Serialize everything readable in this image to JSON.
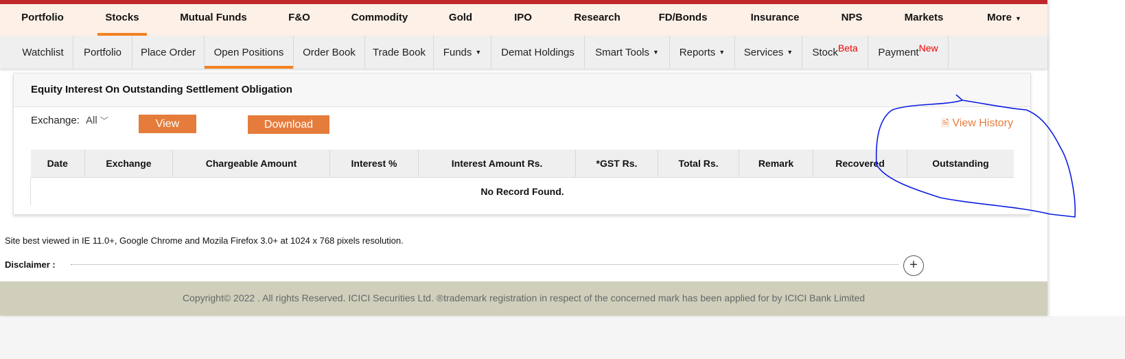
{
  "top_nav": {
    "items": [
      "Portfolio",
      "Stocks",
      "Mutual Funds",
      "F&O",
      "Commodity",
      "Gold",
      "IPO",
      "Research",
      "FD/Bonds",
      "Insurance",
      "NPS",
      "Markets",
      "More"
    ],
    "active": "Stocks"
  },
  "sub_nav": {
    "items": [
      {
        "label": "Watchlist"
      },
      {
        "label": "Portfolio"
      },
      {
        "label": "Place Order"
      },
      {
        "label": "Open Positions"
      },
      {
        "label": "Order Book"
      },
      {
        "label": "Trade Book"
      },
      {
        "label": "Funds"
      },
      {
        "label": "Demat Holdings"
      },
      {
        "label": "Smart Tools"
      },
      {
        "label": "Reports"
      },
      {
        "label": "Services"
      },
      {
        "label": "Stock",
        "badge": "Beta"
      },
      {
        "label": "Payment",
        "badge": "New"
      }
    ],
    "active": "Open Positions"
  },
  "card": {
    "title": "Equity Interest On Outstanding Settlement Obligation",
    "exchange_label": "Exchange:",
    "exchange_value": "All",
    "view_label": "View",
    "download_label": "Download",
    "view_history_label": "View History"
  },
  "table": {
    "columns": [
      "Date",
      "Exchange",
      "Chargeable Amount",
      "Interest %",
      "Interest Amount Rs.",
      "*GST Rs.",
      "Total Rs.",
      "Remark",
      "Recovered",
      "Outstanding"
    ],
    "empty_message": "No Record Found."
  },
  "footer": {
    "note": "Site best viewed in IE 11.0+, Google Chrome and Mozila Firefox 3.0+ at 1024 x 768 pixels resolution.",
    "disclaimer_label": "Disclaimer :",
    "copyright": "Copyright© 2022 . All rights Reserved. ICICI Securities Ltd. ®trademark registration in respect of the concerned mark has been applied for by ICICI Bank Limited"
  },
  "colors": {
    "accent": "#f48120",
    "button": "#e57c3c",
    "top_bar": "#c0282b",
    "annotation": "#0a1be0"
  }
}
